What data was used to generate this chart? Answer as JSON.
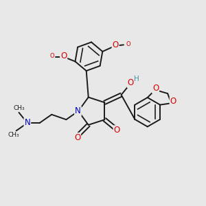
{
  "bg_color": "#e8e8e8",
  "bond_color": "#1a1a1a",
  "bond_width": 1.4,
  "atom_colors": {
    "O": "#dd0000",
    "N": "#0000bb",
    "H": "#4a8fa0",
    "C": "#1a1a1a"
  },
  "font_size_atom": 8.5,
  "font_size_small": 7.0
}
